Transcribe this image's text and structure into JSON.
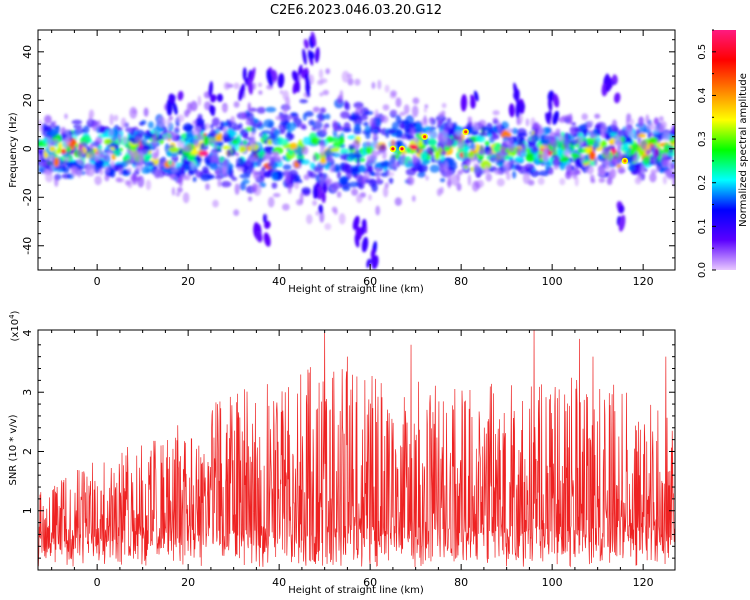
{
  "title": "C2E6.2023.046.03.20.G12",
  "chart_data": [
    {
      "type": "heatmap",
      "title": "C2E6.2023.046.03.20.G12",
      "xlabel": "Height of straight line (km)",
      "ylabel": "Frequency (Hz)",
      "xlim": [
        -13,
        127
      ],
      "ylim": [
        -50,
        49
      ],
      "xticks": [
        "0",
        "20",
        "40",
        "60",
        "80",
        "100",
        "120"
      ],
      "yticks": [
        "-40",
        "-20",
        "0",
        "20",
        "40"
      ],
      "colorbar": {
        "label": "Normalized spectral amplitude",
        "range": [
          0.0,
          0.55
        ],
        "ticks": [
          "0.0",
          "0.1",
          "0.2",
          "0.3",
          "0.4",
          "0.5"
        ],
        "colormap": [
          "#e8c8ff",
          "#5a00ff",
          "#0000ff",
          "#00ffff",
          "#00ff00",
          "#ffff00",
          "#ff8000",
          "#ff0000",
          "#ff1a80"
        ]
      },
      "frequency_band_hz": [
        -10,
        10
      ],
      "clusters": [
        {
          "x": 17,
          "y": 21
        },
        {
          "x": 26,
          "y": 20
        },
        {
          "x": 33,
          "y": 28
        },
        {
          "x": 39,
          "y": 31
        },
        {
          "x": 45,
          "y": 28
        },
        {
          "x": 47,
          "y": 41
        },
        {
          "x": 36,
          "y": -33
        },
        {
          "x": 49,
          "y": -21
        },
        {
          "x": 58,
          "y": -35
        },
        {
          "x": 60,
          "y": -43
        },
        {
          "x": 82,
          "y": 21
        },
        {
          "x": 92,
          "y": 20
        },
        {
          "x": 100,
          "y": 17
        },
        {
          "x": 113,
          "y": 24
        },
        {
          "x": 116,
          "y": -27
        }
      ],
      "peaks": [
        {
          "x": 65,
          "y": 0,
          "value": 0.5
        },
        {
          "x": 67,
          "y": 0,
          "value": 0.5
        },
        {
          "x": 72,
          "y": 5,
          "value": 0.45
        },
        {
          "x": 81,
          "y": 7,
          "value": 0.45
        },
        {
          "x": 116,
          "y": -5,
          "value": 0.42
        }
      ]
    },
    {
      "type": "line",
      "xlabel": "Height of straight line (km)",
      "ylabel": "SNR (10 * v/v)",
      "yscale_label": "(x10",
      "yscale_exp": "4",
      "yscale_close": ")",
      "xlim": [
        -13,
        127
      ],
      "ylim": [
        0,
        4.05
      ],
      "xticks": [
        "0",
        "20",
        "40",
        "60",
        "80",
        "100",
        "120"
      ],
      "yticks": [
        "1",
        "2",
        "3",
        "4"
      ],
      "color": "#ee2222",
      "envelope_upper": [
        {
          "x": -13,
          "y": 1.3
        },
        {
          "x": 0,
          "y": 1.9
        },
        {
          "x": 10,
          "y": 2.2
        },
        {
          "x": 20,
          "y": 2.6
        },
        {
          "x": 30,
          "y": 3.0
        },
        {
          "x": 40,
          "y": 3.3
        },
        {
          "x": 50,
          "y": 3.5
        },
        {
          "x": 60,
          "y": 3.3
        },
        {
          "x": 70,
          "y": 3.2
        },
        {
          "x": 80,
          "y": 3.1
        },
        {
          "x": 90,
          "y": 3.2
        },
        {
          "x": 100,
          "y": 3.3
        },
        {
          "x": 110,
          "y": 3.2
        },
        {
          "x": 120,
          "y": 3.0
        },
        {
          "x": 127,
          "y": 2.8
        }
      ],
      "peaks": [
        {
          "x": 50,
          "y": 4.0
        },
        {
          "x": 55,
          "y": 3.6
        },
        {
          "x": 69,
          "y": 3.8
        },
        {
          "x": 96,
          "y": 4.05
        },
        {
          "x": 106,
          "y": 3.9
        },
        {
          "x": 109,
          "y": 3.6
        },
        {
          "x": 125,
          "y": 3.6
        }
      ]
    }
  ]
}
